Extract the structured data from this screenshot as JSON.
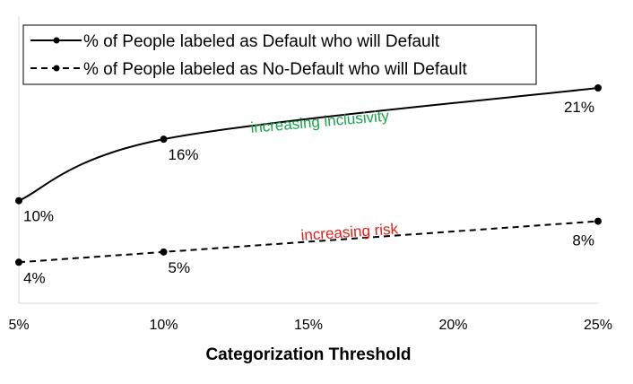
{
  "chart_data": {
    "type": "line",
    "x": [
      0.05,
      0.1,
      0.25
    ],
    "x_ticks": [
      0.05,
      0.1,
      0.15,
      0.2,
      0.25
    ],
    "x_tick_labels": [
      "5%",
      "10%",
      "15%",
      "20%",
      "25%"
    ],
    "xlim": [
      0.05,
      0.25
    ],
    "ylim": [
      0.0,
      0.28
    ],
    "xlabel": "Categorization Threshold",
    "ylabel": "",
    "title": "",
    "grid": false,
    "legend_position": "top-left",
    "series": [
      {
        "name": "% of People labeled as Default who will Default",
        "line_style": "solid",
        "smooth": true,
        "values": [
          0.1,
          0.16,
          0.21
        ],
        "data_labels": [
          "10%",
          "16%",
          "21%"
        ]
      },
      {
        "name": "% of People labeled as No-Default who will Default",
        "line_style": "dashed",
        "smooth": false,
        "values": [
          0.04,
          0.05,
          0.08
        ],
        "data_labels": [
          "4%",
          "5%",
          "8%"
        ]
      }
    ],
    "annotations": [
      {
        "text": "increasing inclusivity",
        "color": "#1aa34a",
        "series": 0
      },
      {
        "text": "increasing risk",
        "color": "#e0201b",
        "series": 1
      }
    ]
  }
}
